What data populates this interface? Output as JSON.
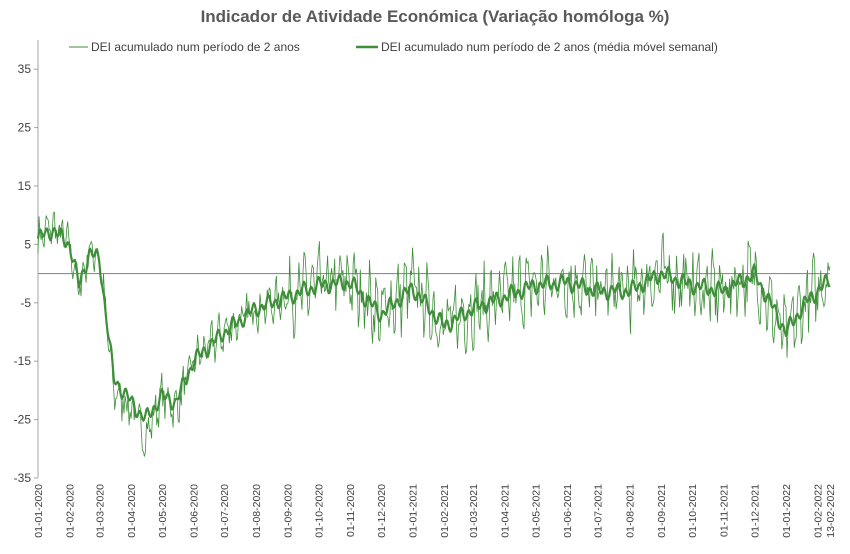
{
  "chart_data": {
    "type": "line",
    "title": "Indicador de Atividade Económica (Variação homóloga %)",
    "xlabel": "",
    "ylabel": "",
    "ylim": [
      -35,
      40
    ],
    "yticks": [
      35,
      25,
      15,
      5,
      -5,
      -15,
      -25,
      -35
    ],
    "x_tick_labels": [
      "01-01-2020",
      "01-02-2020",
      "01-03-2020",
      "01-04-2020",
      "01-05-2020",
      "01-06-2020",
      "01-07-2020",
      "01-08-2020",
      "01-09-2020",
      "01-10-2020",
      "01-11-2020",
      "01-12-2020",
      "01-01-2021",
      "01-02-2021",
      "01-03-2021",
      "01-04-2021",
      "01-05-2021",
      "01-06-2021",
      "01-07-2021",
      "01-08-2021",
      "01-09-2021",
      "01-10-2021",
      "01-11-2021",
      "01-12-2021",
      "01-01-2022",
      "01-02-2022",
      "13-02-2022"
    ],
    "grid": false,
    "zero_line": true,
    "legend": "top",
    "colors": {
      "series": "#3f8f3a",
      "zero_line": "#7f7f7f",
      "axis": "#a6a6a6"
    },
    "series": [
      {
        "name": "DEI acumulado num período de 2 anos",
        "style": "thin",
        "monthly": [
          {
            "date": "2020-01-01",
            "value": 6
          },
          {
            "date": "2020-01-15",
            "value": 8
          },
          {
            "date": "2020-02-01",
            "value": 5
          },
          {
            "date": "2020-02-10",
            "value": -3
          },
          {
            "date": "2020-02-20",
            "value": 4
          },
          {
            "date": "2020-03-01",
            "value": 3
          },
          {
            "date": "2020-03-15",
            "value": -20
          },
          {
            "date": "2020-04-01",
            "value": -23
          },
          {
            "date": "2020-04-15",
            "value": -28
          },
          {
            "date": "2020-05-01",
            "value": -21
          },
          {
            "date": "2020-05-15",
            "value": -23
          },
          {
            "date": "2020-06-01",
            "value": -15
          },
          {
            "date": "2020-07-01",
            "value": -10
          },
          {
            "date": "2020-08-01",
            "value": -6
          },
          {
            "date": "2020-09-01",
            "value": -4
          },
          {
            "date": "2020-10-01",
            "value": -2
          },
          {
            "date": "2020-11-01",
            "value": -1
          },
          {
            "date": "2020-12-01",
            "value": -7
          },
          {
            "date": "2021-01-01",
            "value": -2
          },
          {
            "date": "2021-02-01",
            "value": -9
          },
          {
            "date": "2021-03-01",
            "value": -6
          },
          {
            "date": "2021-04-01",
            "value": -4
          },
          {
            "date": "2021-05-01",
            "value": -2
          },
          {
            "date": "2021-06-01",
            "value": -1
          },
          {
            "date": "2021-07-01",
            "value": -3
          },
          {
            "date": "2021-08-01",
            "value": -3
          },
          {
            "date": "2021-09-01",
            "value": 0
          },
          {
            "date": "2021-10-01",
            "value": -2
          },
          {
            "date": "2021-11-01",
            "value": -3
          },
          {
            "date": "2021-12-01",
            "value": 0
          },
          {
            "date": "2022-01-01",
            "value": -11
          },
          {
            "date": "2022-01-20",
            "value": -5
          },
          {
            "date": "2022-02-13",
            "value": 0
          }
        ]
      },
      {
        "name": "DEI acumulado num período de 2 anos (média móvel semanal)",
        "style": "thick",
        "monthly": [
          {
            "date": "2020-01-01",
            "value": 6
          },
          {
            "date": "2020-01-15",
            "value": 7.5
          },
          {
            "date": "2020-02-01",
            "value": 5
          },
          {
            "date": "2020-02-10",
            "value": -2
          },
          {
            "date": "2020-02-20",
            "value": 3.5
          },
          {
            "date": "2020-03-01",
            "value": 2.5
          },
          {
            "date": "2020-03-15",
            "value": -18
          },
          {
            "date": "2020-04-01",
            "value": -22
          },
          {
            "date": "2020-04-15",
            "value": -25
          },
          {
            "date": "2020-05-01",
            "value": -21
          },
          {
            "date": "2020-05-15",
            "value": -22
          },
          {
            "date": "2020-06-01",
            "value": -15
          },
          {
            "date": "2020-07-01",
            "value": -10
          },
          {
            "date": "2020-08-01",
            "value": -6
          },
          {
            "date": "2020-09-01",
            "value": -4
          },
          {
            "date": "2020-10-01",
            "value": -2
          },
          {
            "date": "2020-11-01",
            "value": -1.5
          },
          {
            "date": "2020-12-01",
            "value": -7
          },
          {
            "date": "2021-01-01",
            "value": -2.5
          },
          {
            "date": "2021-02-01",
            "value": -9
          },
          {
            "date": "2021-03-01",
            "value": -6
          },
          {
            "date": "2021-04-01",
            "value": -4
          },
          {
            "date": "2021-05-01",
            "value": -2
          },
          {
            "date": "2021-06-01",
            "value": -1.5
          },
          {
            "date": "2021-07-01",
            "value": -3
          },
          {
            "date": "2021-08-01",
            "value": -3
          },
          {
            "date": "2021-09-01",
            "value": 0
          },
          {
            "date": "2021-10-01",
            "value": -2
          },
          {
            "date": "2021-11-01",
            "value": -3
          },
          {
            "date": "2021-12-01",
            "value": 0
          },
          {
            "date": "2022-01-01",
            "value": -10
          },
          {
            "date": "2022-01-20",
            "value": -5
          },
          {
            "date": "2022-02-13",
            "value": -1
          }
        ]
      }
    ]
  }
}
